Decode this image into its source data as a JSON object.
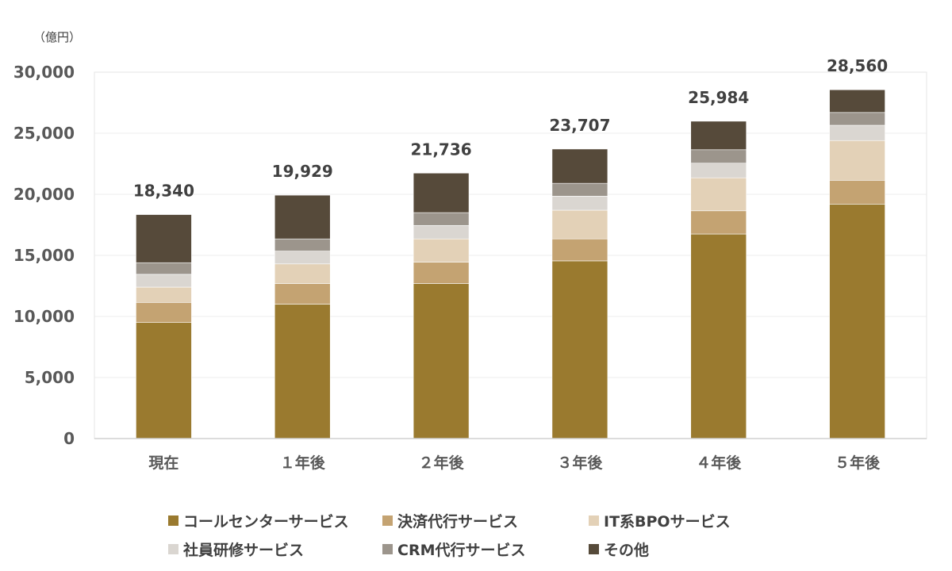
{
  "chart_data": {
    "type": "bar",
    "stacked": true,
    "unit_label": "（億円）",
    "categories": [
      "現在",
      "１年後",
      "２年後",
      "３年後",
      "４年後",
      "５年後"
    ],
    "series": [
      {
        "name": "コールセンターサービス",
        "color": "#9a7a2f",
        "values": [
          9500,
          11000,
          12700,
          14550,
          16750,
          19200
        ]
      },
      {
        "name": "決済代行サービス",
        "color": "#c4a372",
        "values": [
          1650,
          1700,
          1750,
          1800,
          1900,
          1950
        ]
      },
      {
        "name": "IT系BPOサービス",
        "color": "#e3d1b7",
        "values": [
          1250,
          1600,
          1900,
          2350,
          2700,
          3250
        ]
      },
      {
        "name": "社員研修サービス",
        "color": "#dad6d1",
        "values": [
          1050,
          1050,
          1100,
          1150,
          1200,
          1250
        ]
      },
      {
        "name": "CRM代行サービス",
        "color": "#9c958c",
        "values": [
          950,
          1000,
          1050,
          1050,
          1100,
          1050
        ]
      },
      {
        "name": "その他",
        "color": "#564a3a",
        "values": [
          3940,
          3579,
          3236,
          2807,
          2334,
          1860
        ]
      }
    ],
    "totals": [
      "18,340",
      "19,929",
      "21,736",
      "23,707",
      "25,984",
      "28,560"
    ],
    "total_values": [
      18340,
      19929,
      21736,
      23707,
      25984,
      28560
    ],
    "y_ticks": [
      "0",
      "5,000",
      "10,000",
      "15,000",
      "20,000",
      "25,000",
      "30,000"
    ],
    "ylim": [
      0,
      30000
    ],
    "grid": true,
    "legend_position": "bottom"
  }
}
